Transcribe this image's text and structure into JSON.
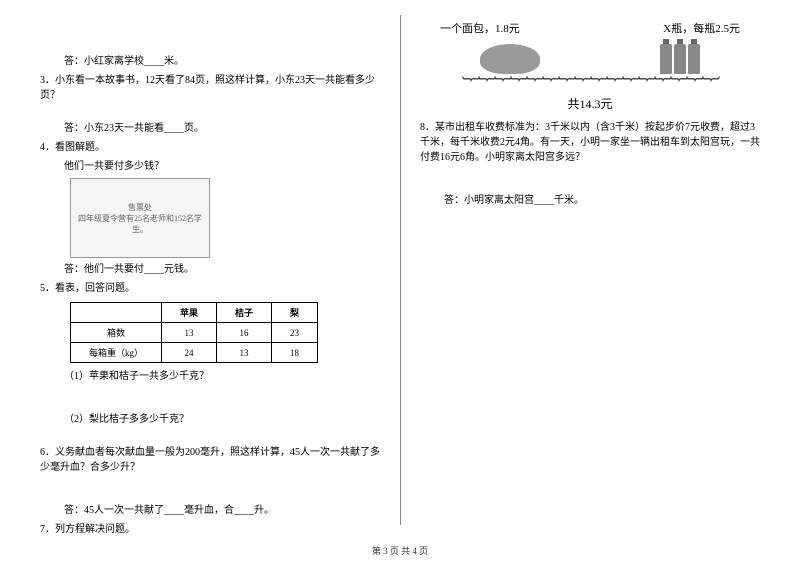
{
  "left": {
    "q2_answer": "答：小红家离学校____米。",
    "q3": "3．小东看一本故事书，12天看了84页，照这样计算，小东23天一共能看多少页？",
    "q3_answer": "答：小东23天一共能看____页。",
    "q4": "4．看图解题。",
    "q4_sub": "他们一共要付多少钱？",
    "q4_illustration": "售票处",
    "q4_banner": "四年级夏令营有25名老师和152名学生。",
    "q4_answer": "答：他们一共要付____元钱。",
    "q5": "5．看表，回答问题。",
    "table": {
      "headers": [
        "",
        "苹果",
        "桔子",
        "梨"
      ],
      "row1": [
        "箱数",
        "13",
        "16",
        "23"
      ],
      "row2": [
        "每箱重（kg）",
        "24",
        "13",
        "18"
      ]
    },
    "q5_1": "（1）苹果和桔子一共多少千克？",
    "q5_2": "（2）梨比桔子多多少千克？",
    "q6": "6．义务献血者每次献血量一般为200毫升，照这样计算，45人一次一共献了多少毫升血？合多少升？",
    "q6_answer": "答：45人一次一共献了____毫升血，合____升。",
    "q7": "7．列方程解决问题。"
  },
  "right": {
    "bread_label": "一个面包，1.8元",
    "bottle_label": "X瓶，每瓶2.5元",
    "total": "共14.3元",
    "q8": "8．某市出租车收费标准为：3千米以内（含3千米）按起步价7元收费，超过3千米，每千米收费2元4角。有一天，小明一家坐一辆出租车到太阳宫玩，一共付费16元6角。小明家离太阳宫多远？",
    "q8_answer": "答：小明家离太阳宫____千米。"
  },
  "footer": "第 3 页 共 4 页"
}
